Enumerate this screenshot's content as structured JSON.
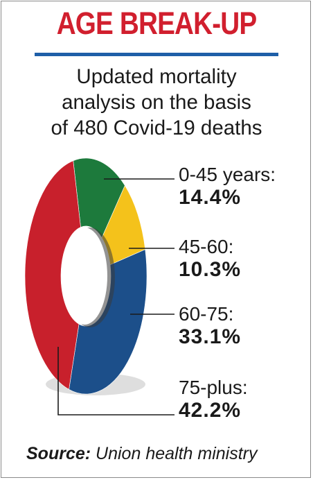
{
  "header": {
    "title": "AGE BREAK-UP",
    "subtitle_lines": [
      "Updated mortality",
      "analysis on the basis",
      "of 480 Covid-19 deaths"
    ]
  },
  "colors": {
    "title": "#d11f2e",
    "rule": "#1f5fa8",
    "leader": "#1a1a1a"
  },
  "chart_data": {
    "type": "pie",
    "style": "donut",
    "unit": "%",
    "categories": [
      "0-45 years:",
      "45-60:",
      "60-75:",
      "75-plus:"
    ],
    "values": [
      14.4,
      10.3,
      33.1,
      42.2
    ],
    "value_labels": [
      "14.4%",
      "10.3%",
      "33.1%",
      "42.2%"
    ],
    "colors": [
      "#1d7a3c",
      "#f4c21b",
      "#1c4f8a",
      "#c8202c"
    ]
  },
  "footer": {
    "source_label": "Source:",
    "source_text": "Union health ministry"
  }
}
